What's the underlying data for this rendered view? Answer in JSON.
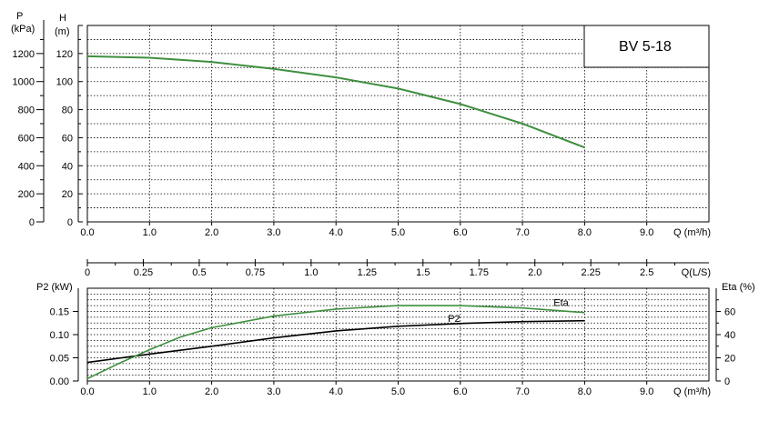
{
  "chart_data": [
    {
      "type": "line",
      "title": "BV 5-18",
      "xlabel": "Q (m³/h)",
      "x_ticks": [
        "0.0",
        "1.0",
        "2.0",
        "3.0",
        "4.0",
        "5.0",
        "6.0",
        "7.0",
        "8.0",
        "9.0"
      ],
      "xlim": [
        0,
        10
      ],
      "y_axes": [
        {
          "label": "H",
          "unit": "(m)",
          "lim": [
            0,
            140
          ],
          "ticks": [
            "0",
            "20",
            "40",
            "60",
            "80",
            "100",
            "120"
          ]
        },
        {
          "label": "P",
          "unit": "(kPa)",
          "lim": [
            0,
            1400
          ],
          "ticks": [
            "0",
            "200",
            "400",
            "600",
            "800",
            "1000",
            "1200"
          ]
        }
      ],
      "grid": true,
      "series": [
        {
          "color": "#3f8f3f",
          "x": [
            0,
            1,
            2,
            3,
            4,
            5,
            6,
            7,
            8
          ],
          "y": [
            118,
            117,
            114,
            109,
            103,
            95,
            84,
            70,
            53
          ]
        }
      ]
    },
    {
      "type": "line",
      "xlabel": "Q (m³/h)",
      "x_ticks": [
        "0.0",
        "1.0",
        "2.0",
        "3.0",
        "4.0",
        "5.0",
        "6.0",
        "7.0",
        "8.0",
        "9.0"
      ],
      "xlim": [
        0,
        10
      ],
      "top_axis": {
        "label": "Q(L/S)",
        "ticks": [
          "0",
          "0.25",
          "0.5",
          "0.75",
          "1.0",
          "1.25",
          "1.5",
          "1.75",
          "2.0",
          "2.25",
          "2.5"
        ],
        "lim": [
          0,
          2.7778
        ]
      },
      "y_left": {
        "label": "P2 (kW)",
        "lim": [
          0,
          0.2
        ],
        "ticks": [
          "0.00",
          "0.05",
          "0.10",
          "0.15"
        ]
      },
      "y_right": {
        "label": "Eta (%)",
        "lim": [
          0,
          80
        ],
        "ticks": [
          "0",
          "20",
          "40",
          "60"
        ]
      },
      "grid": true,
      "series": [
        {
          "name": "P2",
          "axis": "left",
          "color": "#000000",
          "x": [
            0,
            1,
            2,
            3,
            4,
            5,
            6,
            7,
            8
          ],
          "y": [
            0.04,
            0.058,
            0.075,
            0.093,
            0.108,
            0.118,
            0.124,
            0.128,
            0.13
          ]
        },
        {
          "name": "Eta",
          "axis": "right",
          "color": "#3f8f3f",
          "x": [
            0,
            0.5,
            1,
            1.5,
            2,
            3,
            4,
            5,
            6,
            7,
            8
          ],
          "y": [
            2,
            15,
            27,
            38,
            46,
            56,
            62,
            65,
            65,
            63,
            59
          ]
        }
      ]
    }
  ]
}
